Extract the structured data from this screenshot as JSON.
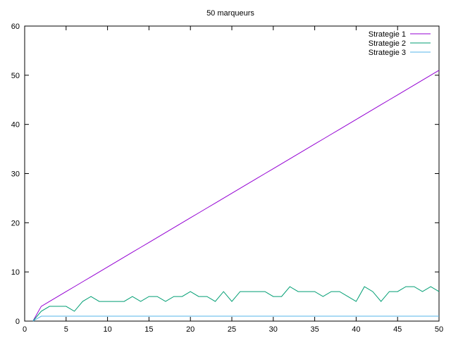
{
  "chart_data": {
    "type": "line",
    "title": "50 marqueurs",
    "xlabel": "",
    "ylabel": "",
    "xlim": [
      0,
      50
    ],
    "ylim": [
      0,
      60
    ],
    "xticks": [
      0,
      5,
      10,
      15,
      20,
      25,
      30,
      35,
      40,
      45,
      50
    ],
    "yticks": [
      0,
      10,
      20,
      30,
      40,
      50,
      60
    ],
    "grid": false,
    "legend_position": "top-right",
    "x": [
      1,
      2,
      3,
      4,
      5,
      6,
      7,
      8,
      9,
      10,
      11,
      12,
      13,
      14,
      15,
      16,
      17,
      18,
      19,
      20,
      21,
      22,
      23,
      24,
      25,
      26,
      27,
      28,
      29,
      30,
      31,
      32,
      33,
      34,
      35,
      36,
      37,
      38,
      39,
      40,
      41,
      42,
      43,
      44,
      45,
      46,
      47,
      48,
      49,
      50
    ],
    "series": [
      {
        "name": "Strategie 1",
        "color": "#9400d3",
        "values": [
          0,
          3,
          4,
          5,
          6,
          7,
          8,
          9,
          10,
          11,
          12,
          13,
          14,
          15,
          16,
          17,
          18,
          19,
          20,
          21,
          22,
          23,
          24,
          25,
          26,
          27,
          28,
          29,
          30,
          31,
          32,
          33,
          34,
          35,
          36,
          37,
          38,
          39,
          40,
          41,
          42,
          43,
          44,
          45,
          46,
          47,
          48,
          49,
          50,
          51
        ]
      },
      {
        "name": "Strategie 2",
        "color": "#009e73",
        "values": [
          0,
          2,
          3,
          3,
          3,
          2,
          4,
          5,
          4,
          4,
          4,
          4,
          5,
          4,
          5,
          5,
          4,
          5,
          5,
          6,
          5,
          5,
          4,
          6,
          4,
          6,
          6,
          6,
          6,
          5,
          5,
          7,
          6,
          6,
          6,
          5,
          6,
          6,
          5,
          4,
          7,
          6,
          4,
          6,
          6,
          7,
          7,
          6,
          7,
          6
        ]
      },
      {
        "name": "Strategie 3",
        "color": "#56b4e9",
        "values": [
          0,
          1,
          1,
          1,
          1,
          1,
          1,
          1,
          1,
          1,
          1,
          1,
          1,
          1,
          1,
          1,
          1,
          1,
          1,
          1,
          1,
          1,
          1,
          1,
          1,
          1,
          1,
          1,
          1,
          1,
          1,
          1,
          1,
          1,
          1,
          1,
          1,
          1,
          1,
          1,
          1,
          1,
          1,
          1,
          1,
          1,
          1,
          1,
          1,
          1
        ]
      }
    ]
  }
}
